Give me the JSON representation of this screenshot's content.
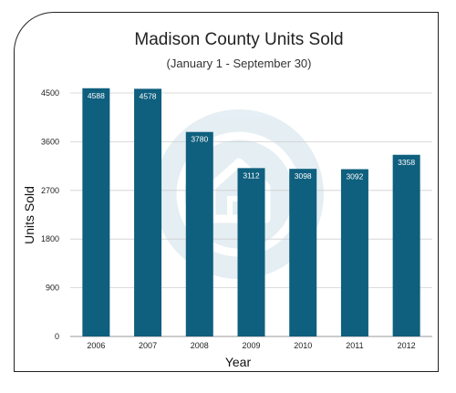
{
  "chart_data": {
    "type": "bar",
    "title": "Madison County Units Sold",
    "subtitle": "(January 1 - September 30)",
    "xlabel": "Year",
    "ylabel": "Units Sold",
    "categories": [
      "2006",
      "2007",
      "2008",
      "2009",
      "2010",
      "2011",
      "2012"
    ],
    "values": [
      4588,
      4578,
      3780,
      3112,
      3098,
      3092,
      3358
    ],
    "data_labels": [
      "4588",
      "4578",
      "3780",
      "3112",
      "3098",
      "3092",
      "3358"
    ],
    "yticks": [
      "0",
      "900",
      "1800",
      "2700",
      "3600",
      "4500"
    ],
    "ylim": [
      0,
      4500
    ],
    "grid": true,
    "legend": "none",
    "bar_color": "#0f5f7e",
    "grid_color": "#cfcfcf",
    "watermark_color": "#c9dde6"
  }
}
